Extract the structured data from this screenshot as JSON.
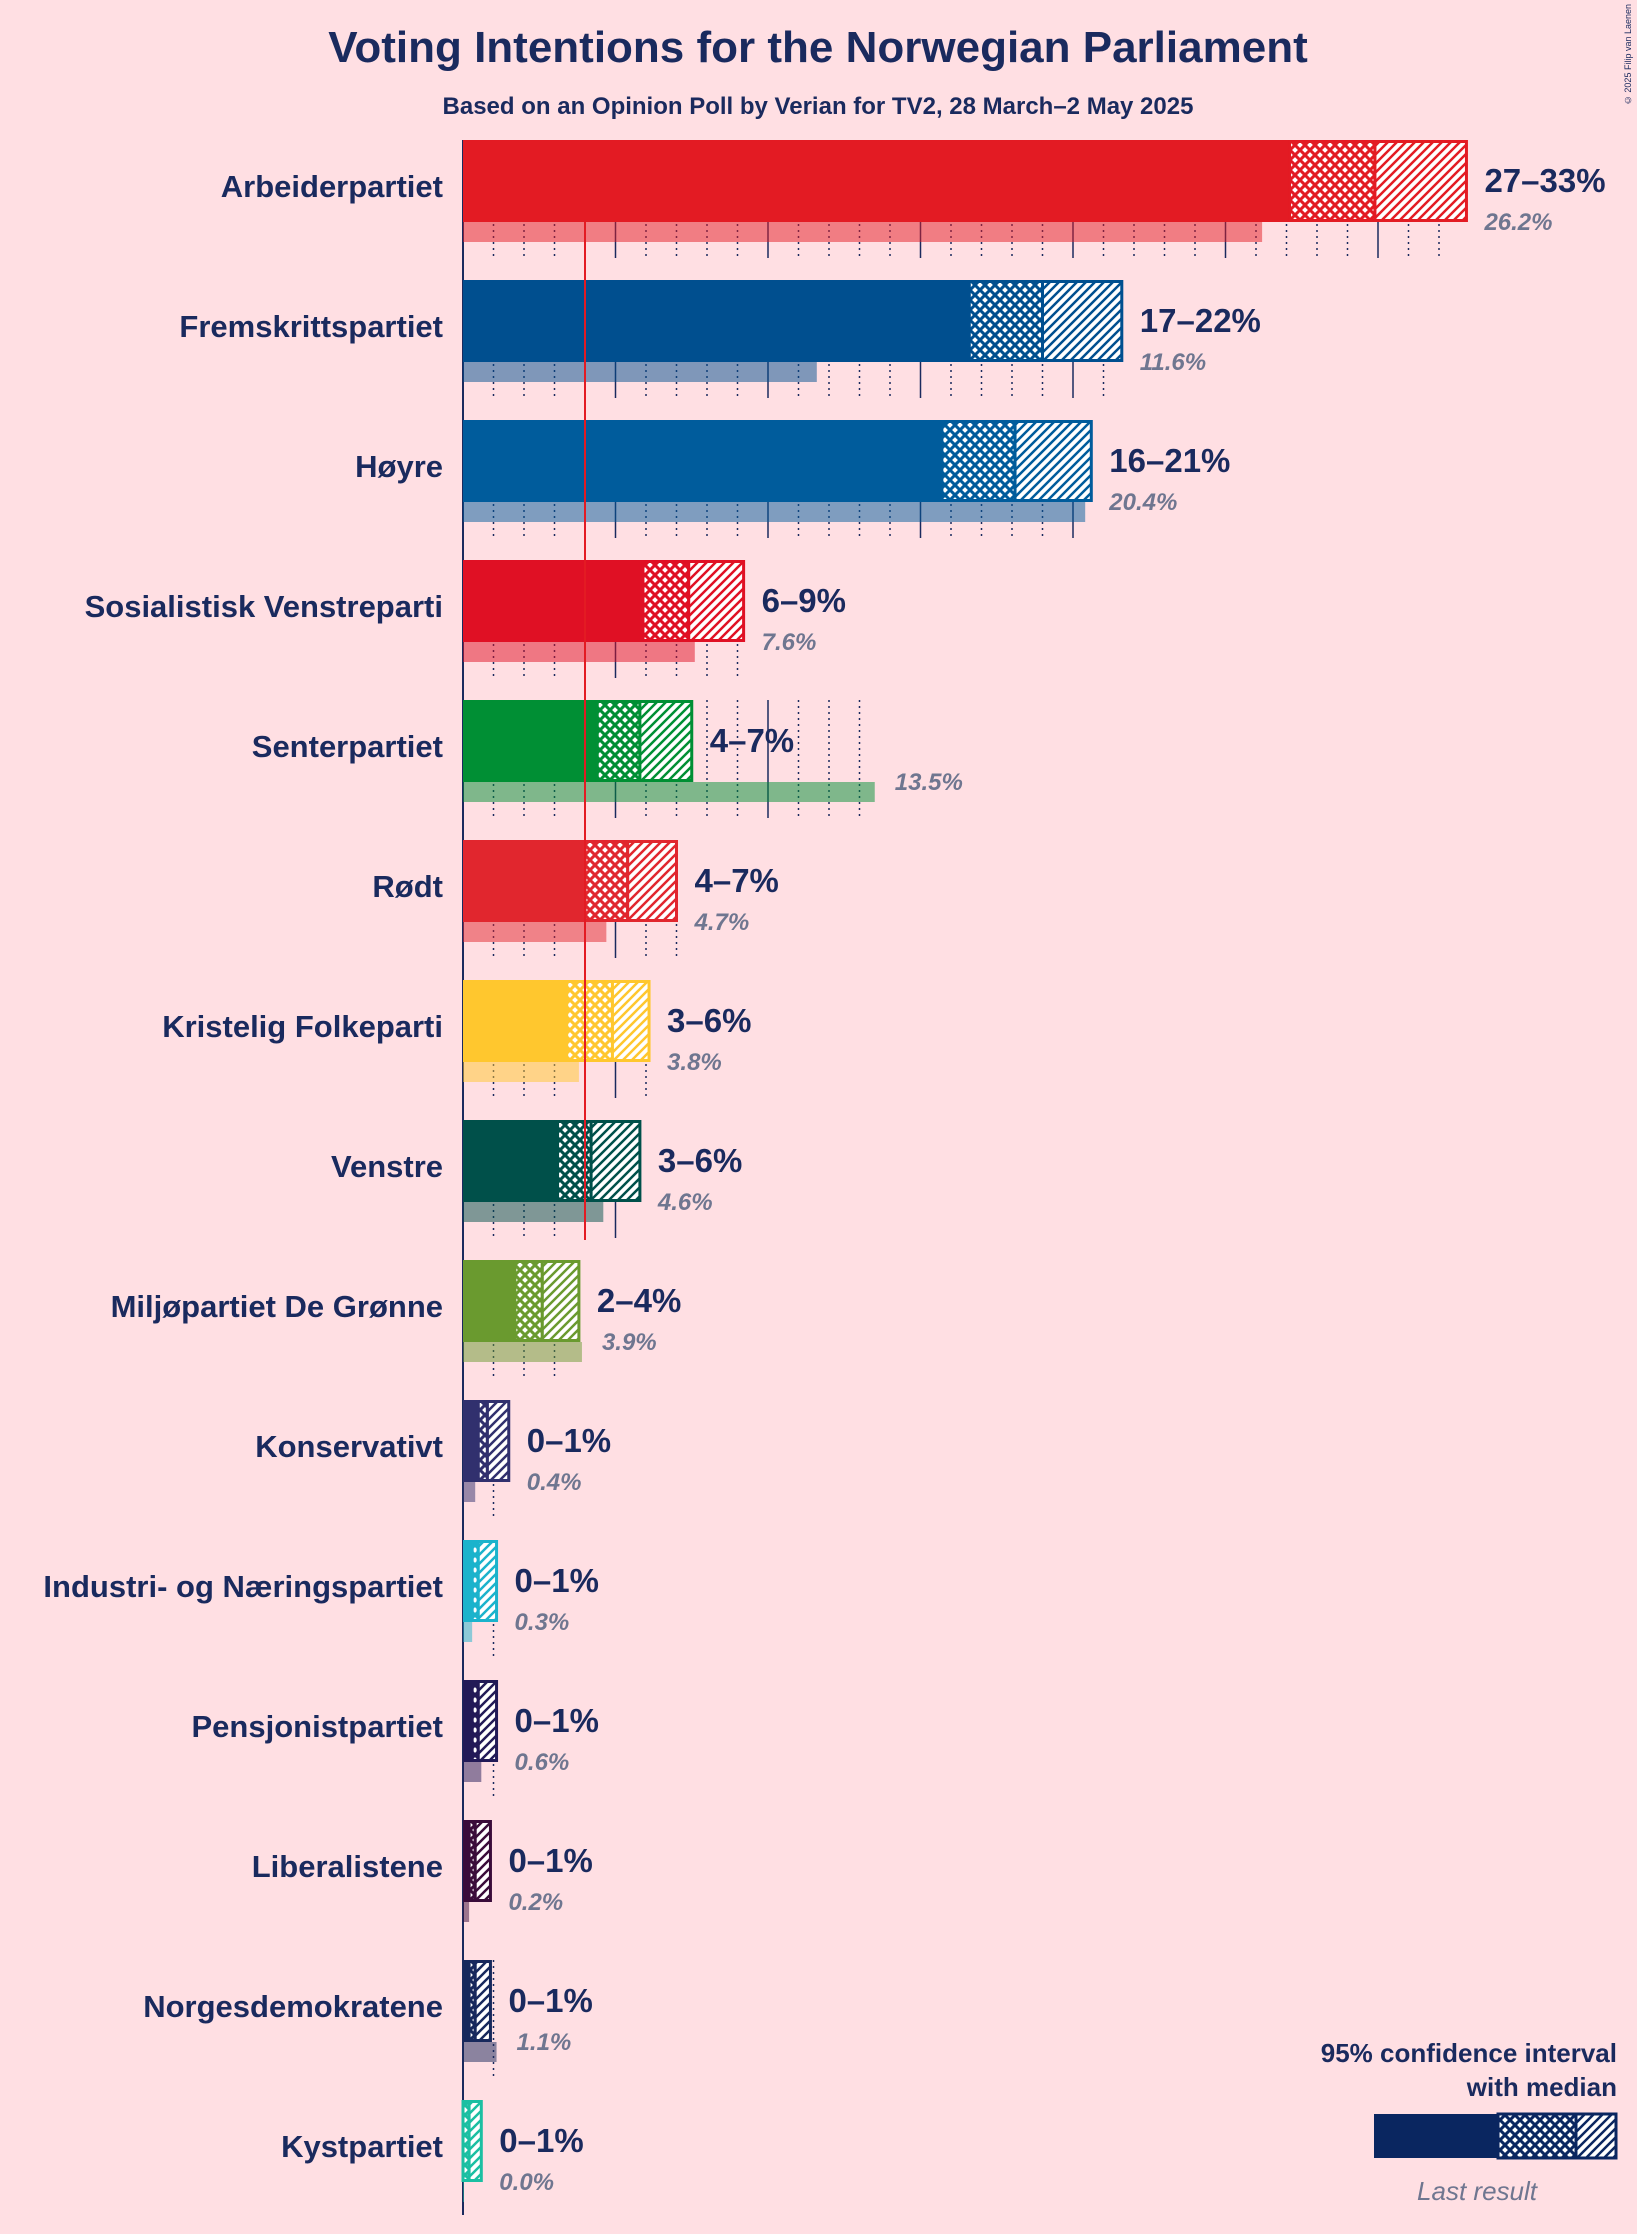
{
  "title": "Voting Intentions for the Norwegian Parliament",
  "subtitle": "Based on an Opinion Poll by Verian for TV2, 28 March–2 May 2025",
  "copyright": "© 2025 Filip van Laenen",
  "legend": {
    "title_line1": "95% confidence interval",
    "title_line2": "with median",
    "last_result": "Last result"
  },
  "chart_data": {
    "type": "bar",
    "orientation": "horizontal",
    "title": "Voting Intentions for the Norwegian Parliament",
    "subtitle": "Based on an Opinion Poll by Verian for TV2, 28 March–2 May 2025",
    "x_unit": "%",
    "xlim": [
      0,
      33
    ],
    "threshold": 4,
    "categories": [
      "Arbeiderpartiet",
      "Fremskrittspartiet",
      "Høyre",
      "Sosialistisk Venstreparti",
      "Senterpartiet",
      "Rødt",
      "Kristelig Folkeparti",
      "Venstre",
      "Miljøpartiet De Grønne",
      "Konservativt",
      "Industri- og Næringspartiet",
      "Pensjonistpartiet",
      "Liberalistene",
      "Norgesdemokratene",
      "Kystpartiet"
    ],
    "series": [
      {
        "name": "95% confidence interval",
        "parties": [
          {
            "party": "Arbeiderpartiet",
            "range_label": "27–33%",
            "low": 27.1,
            "median": 29.9,
            "high": 32.9,
            "color": "#e31b23"
          },
          {
            "party": "Fremskrittspartiet",
            "range_label": "17–22%",
            "low": 16.6,
            "median": 19.0,
            "high": 21.6,
            "color": "#004f8f"
          },
          {
            "party": "Høyre",
            "range_label": "16–21%",
            "low": 15.7,
            "median": 18.1,
            "high": 20.6,
            "color": "#005c9c"
          },
          {
            "party": "Sosialistisk Venstreparti",
            "range_label": "6–9%",
            "low": 5.9,
            "median": 7.4,
            "high": 9.2,
            "color": "#e01024"
          },
          {
            "party": "Senterpartiet",
            "range_label": "4–7%",
            "low": 4.4,
            "median": 5.8,
            "high": 7.5,
            "color": "#008f34"
          },
          {
            "party": "Rødt",
            "range_label": "4–7%",
            "low": 4.0,
            "median": 5.4,
            "high": 7.0,
            "color": "#e1262e"
          },
          {
            "party": "Kristelig Folkeparti",
            "range_label": "3–6%",
            "low": 3.4,
            "median": 4.9,
            "high": 6.1,
            "color": "#ffc72e"
          },
          {
            "party": "Venstre",
            "range_label": "3–6%",
            "low": 3.1,
            "median": 4.2,
            "high": 5.8,
            "color": "#00504a"
          },
          {
            "party": "Miljøpartiet De Grønne",
            "range_label": "2–4%",
            "low": 1.7,
            "median": 2.6,
            "high": 3.8,
            "color": "#6a9a2f"
          },
          {
            "party": "Konservativt",
            "range_label": "0–1%",
            "low": 0.5,
            "median": 0.8,
            "high": 1.5,
            "color": "#31306e"
          },
          {
            "party": "Industri- og Næringspartiet",
            "range_label": "0–1%",
            "low": 0.3,
            "median": 0.5,
            "high": 1.1,
            "color": "#1bb3cc"
          },
          {
            "party": "Pensjonistpartiet",
            "range_label": "0–1%",
            "low": 0.3,
            "median": 0.5,
            "high": 1.1,
            "color": "#221a57"
          },
          {
            "party": "Liberalistene",
            "range_label": "0–1%",
            "low": 0.2,
            "median": 0.4,
            "high": 0.9,
            "color": "#3a0c3a"
          },
          {
            "party": "Norgesdemokratene",
            "range_label": "0–1%",
            "low": 0.2,
            "median": 0.4,
            "high": 0.9,
            "color": "#17285c"
          },
          {
            "party": "Kystpartiet",
            "range_label": "0–1%",
            "low": 0.0,
            "median": 0.2,
            "high": 0.6,
            "color": "#1bbfa2"
          }
        ]
      },
      {
        "name": "Last result",
        "values": [
          26.2,
          11.6,
          20.4,
          7.6,
          13.5,
          4.7,
          3.8,
          4.6,
          3.9,
          0.4,
          0.3,
          0.6,
          0.2,
          1.1,
          0.0
        ],
        "labels": [
          "26.2%",
          "11.6%",
          "20.4%",
          "7.6%",
          "13.5%",
          "4.7%",
          "3.8%",
          "4.6%",
          "3.9%",
          "0.4%",
          "0.3%",
          "0.6%",
          "0.2%",
          "1.1%",
          "0.0%"
        ]
      }
    ]
  }
}
